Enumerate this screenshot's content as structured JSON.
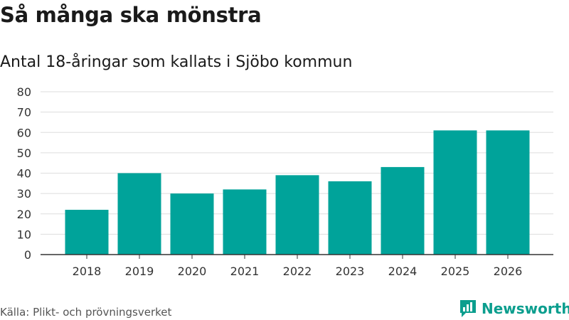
{
  "header": {
    "title": "Så många ska mönstra",
    "subtitle": "Antal 18-åringar som kallats i Sjöbo kommun"
  },
  "footer": {
    "source": "Källa: Plikt- och prövningsverket",
    "brand": "Newsworthy"
  },
  "colors": {
    "bar": "#00a39a",
    "grid": "#dddddd",
    "axis": "#333333",
    "brand": "#0b9e8e"
  },
  "chart_data": {
    "type": "bar",
    "title": "Så många ska mönstra",
    "subtitle": "Antal 18-åringar som kallats i Sjöbo kommun",
    "xlabel": "",
    "ylabel": "",
    "categories": [
      "2018",
      "2019",
      "2020",
      "2021",
      "2022",
      "2023",
      "2024",
      "2025",
      "2026"
    ],
    "values": [
      22,
      40,
      30,
      32,
      39,
      36,
      43,
      61,
      61
    ],
    "ylim": [
      0,
      80
    ],
    "yticks": [
      0,
      10,
      20,
      30,
      40,
      50,
      60,
      70,
      80
    ],
    "grid": true,
    "legend": "none"
  }
}
